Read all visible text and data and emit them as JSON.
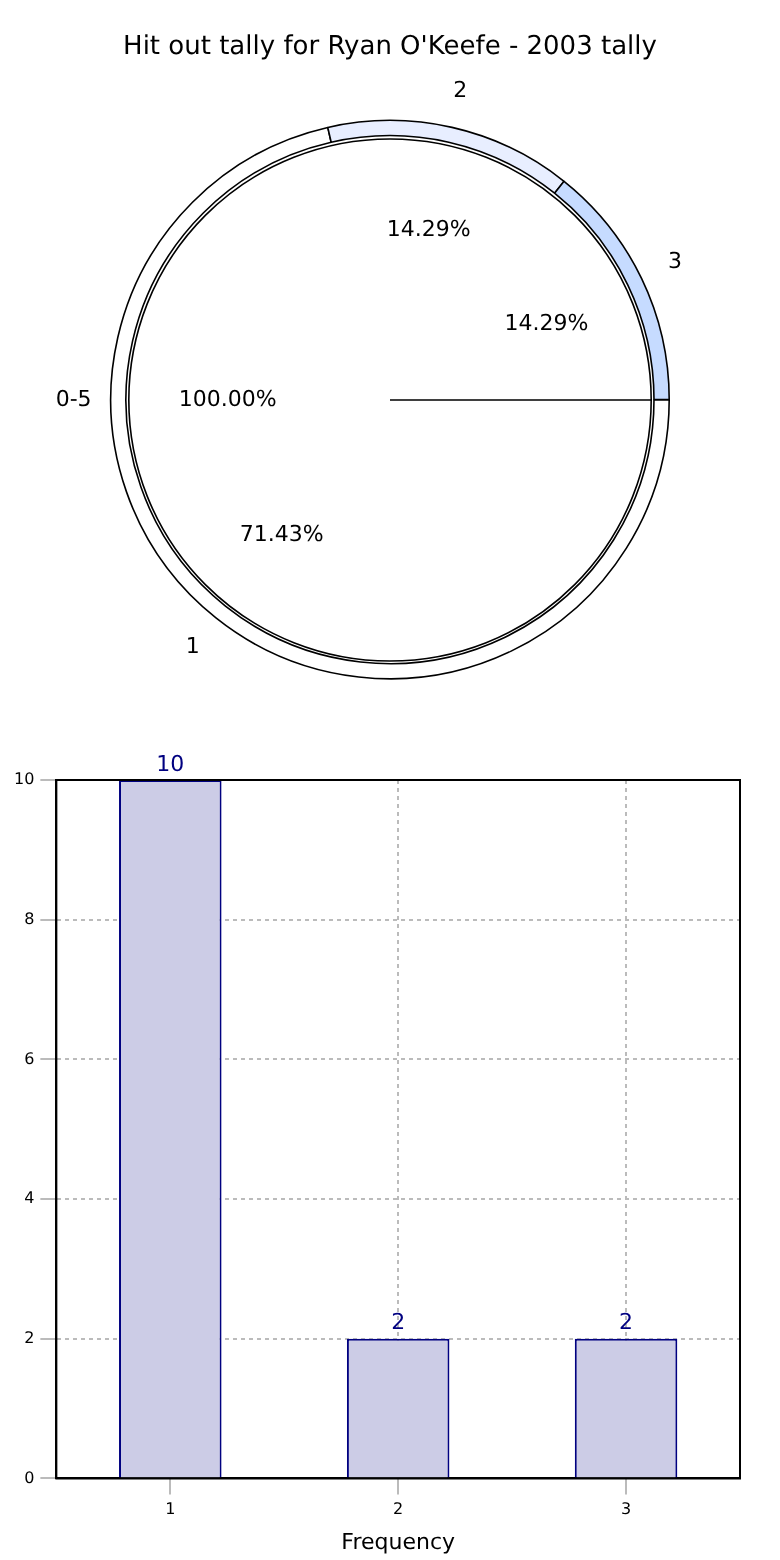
{
  "chart_data": [
    {
      "type": "donut",
      "title": "Hit out tally for Ryan O'Keefe - 2003 tally",
      "categories": [
        "1",
        "2",
        "3"
      ],
      "values": [
        71.43,
        14.29,
        14.29
      ],
      "value_labels": [
        "71.43%",
        "14.29%",
        "14.29%"
      ],
      "colors": [
        "#ffffff",
        "#e8eeff",
        "#c6dbff"
      ]
    },
    {
      "type": "pie",
      "categories": [
        "0-5"
      ],
      "values": [
        100
      ],
      "value_labels": [
        "100.00%"
      ],
      "colors": [
        "#ffffff"
      ]
    },
    {
      "type": "bar",
      "categories": [
        "1",
        "2",
        "3"
      ],
      "values": [
        10,
        2,
        2
      ],
      "color": "#cccce6",
      "xlabel": "Frequency",
      "ylim": [
        0,
        10
      ],
      "yticks": [
        0,
        2,
        4,
        6,
        8,
        10
      ],
      "grid": true,
      "data_labels": true
    }
  ]
}
